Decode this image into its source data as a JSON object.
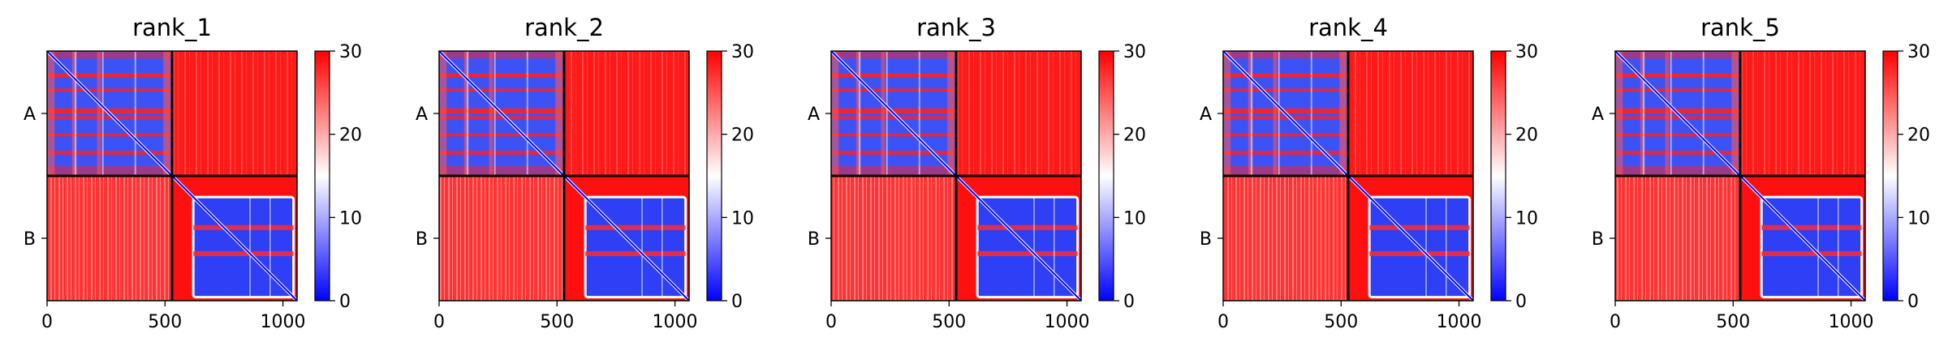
{
  "chart_data": {
    "type": "heatmap",
    "title": "",
    "panel_titles": [
      "rank_1",
      "rank_2",
      "rank_3",
      "rank_4",
      "rank_5"
    ],
    "x_range": [
      0,
      1060
    ],
    "x_ticks": [
      0,
      500,
      1000
    ],
    "chain_boundary": 530,
    "chains": [
      {
        "label": "A",
        "start": 0,
        "end": 530
      },
      {
        "label": "B",
        "start": 530,
        "end": 1060
      }
    ],
    "colorbar": {
      "min": 0,
      "max": 30,
      "ticks": [
        0,
        10,
        20,
        30
      ],
      "colormap": [
        "#0000ff",
        "#ffffff",
        "#ff0000"
      ]
    },
    "colors": {
      "low": "#0000ff",
      "mid": "#ffffff",
      "high": "#ff0000",
      "frame": "#000000"
    },
    "pattern": {
      "intra_chain_a": "low values (blue) with red banding",
      "intra_chain_b": "low values (blue) in a block from ~600 to 1060, red margins",
      "inter_chain": "high values (red)",
      "diagonal": "0"
    }
  }
}
